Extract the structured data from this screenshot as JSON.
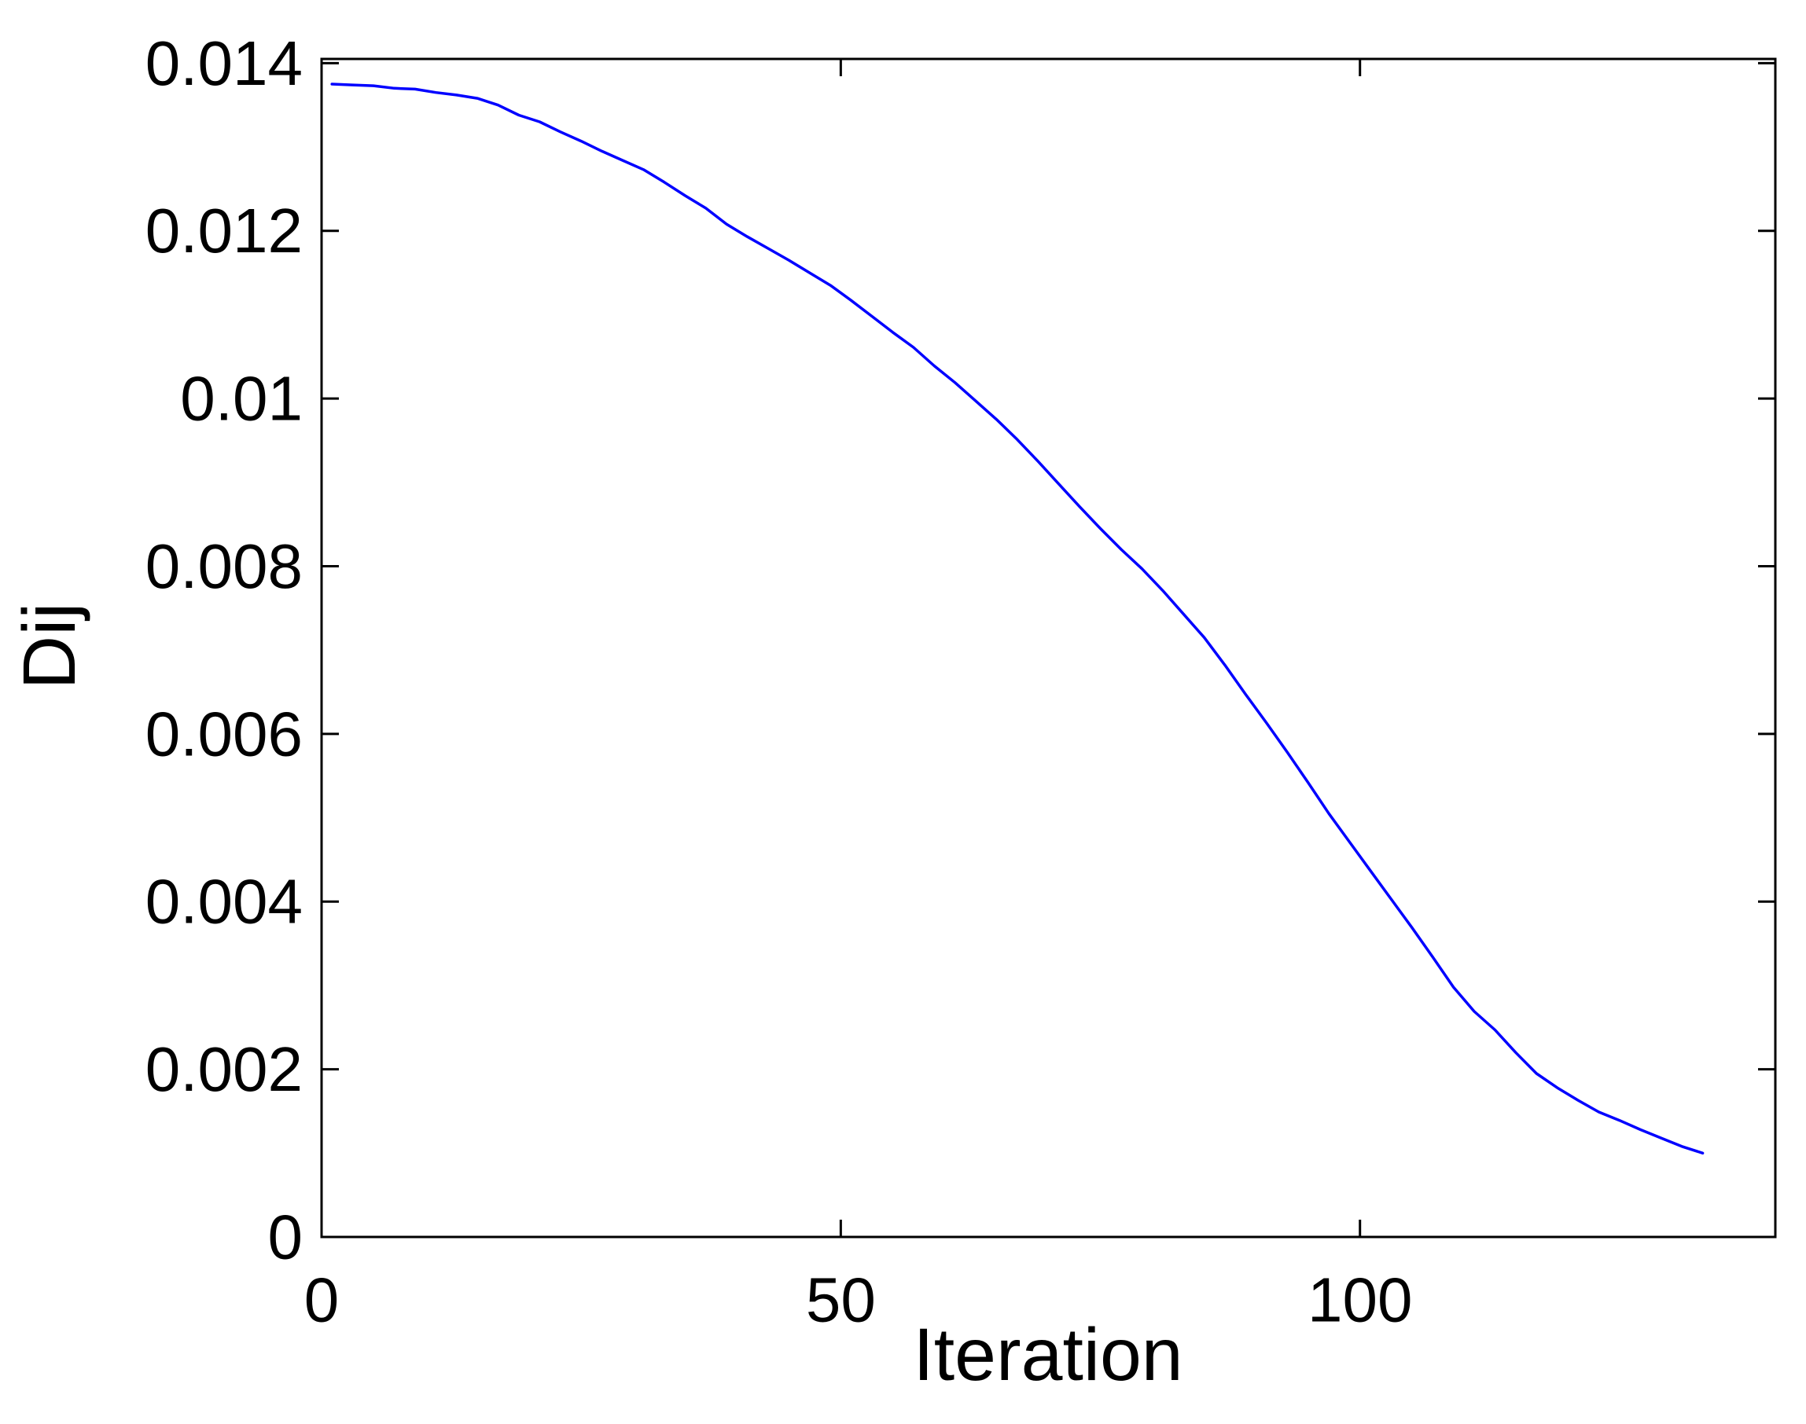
{
  "chart_data": {
    "type": "line",
    "title": "",
    "xlabel": "Iteration",
    "ylabel": "Dij",
    "xlim": [
      0,
      140
    ],
    "ylim": [
      0,
      0.01405
    ],
    "grid": false,
    "legend": null,
    "box": true,
    "tick_direction": "in",
    "background_color": "#FFFFFF",
    "axis_color": "#000000",
    "line_color": "#0000FF",
    "x_ticks": [
      {
        "value": 0,
        "label": "0"
      },
      {
        "value": 50,
        "label": "50"
      },
      {
        "value": 100,
        "label": "100"
      }
    ],
    "y_ticks": [
      {
        "value": 0,
        "label": "0"
      },
      {
        "value": 0.002,
        "label": "0.002"
      },
      {
        "value": 0.004,
        "label": "0.004"
      },
      {
        "value": 0.006,
        "label": "0.006"
      },
      {
        "value": 0.008,
        "label": "0.008"
      },
      {
        "value": 0.01,
        "label": "0.01"
      },
      {
        "value": 0.012,
        "label": "0.012"
      },
      {
        "value": 0.014,
        "label": "0.014"
      }
    ],
    "series": [
      {
        "name": "Dij",
        "x": [
          1,
          3,
          5,
          7,
          9,
          11,
          13,
          15,
          17,
          19,
          21,
          23,
          25,
          27,
          29,
          31,
          33,
          35,
          37,
          39,
          41,
          43,
          45,
          47,
          49,
          51,
          53,
          55,
          57,
          59,
          61,
          63,
          65,
          67,
          69,
          71,
          73,
          75,
          77,
          79,
          81,
          83,
          85,
          87,
          89,
          91,
          93,
          95,
          97,
          99,
          101,
          103,
          105,
          107,
          109,
          111,
          113,
          115,
          117,
          119,
          121,
          123,
          125,
          127,
          129,
          131,
          133
        ],
        "y": [
          0.01375,
          0.01374,
          0.01373,
          0.0137,
          0.01369,
          0.01365,
          0.01362,
          0.01358,
          0.0135,
          0.01338,
          0.0133,
          0.01318,
          0.01307,
          0.01295,
          0.01284,
          0.01273,
          0.01258,
          0.01242,
          0.01227,
          0.01208,
          0.01193,
          0.01179,
          0.01165,
          0.0115,
          0.01135,
          0.01117,
          0.01098,
          0.01079,
          0.01061,
          0.01039,
          0.01019,
          0.00997,
          0.00975,
          0.00951,
          0.00925,
          0.00898,
          0.00871,
          0.00845,
          0.0082,
          0.00797,
          0.00771,
          0.00743,
          0.00715,
          0.00682,
          0.00647,
          0.00613,
          0.00578,
          0.00542,
          0.00505,
          0.00471,
          0.00437,
          0.00403,
          0.00369,
          0.00334,
          0.00298,
          0.00269,
          0.00247,
          0.0022,
          0.00195,
          0.00178,
          0.00163,
          0.00149,
          0.00139,
          0.00128,
          0.00118,
          0.00108,
          0.001
        ]
      }
    ]
  }
}
